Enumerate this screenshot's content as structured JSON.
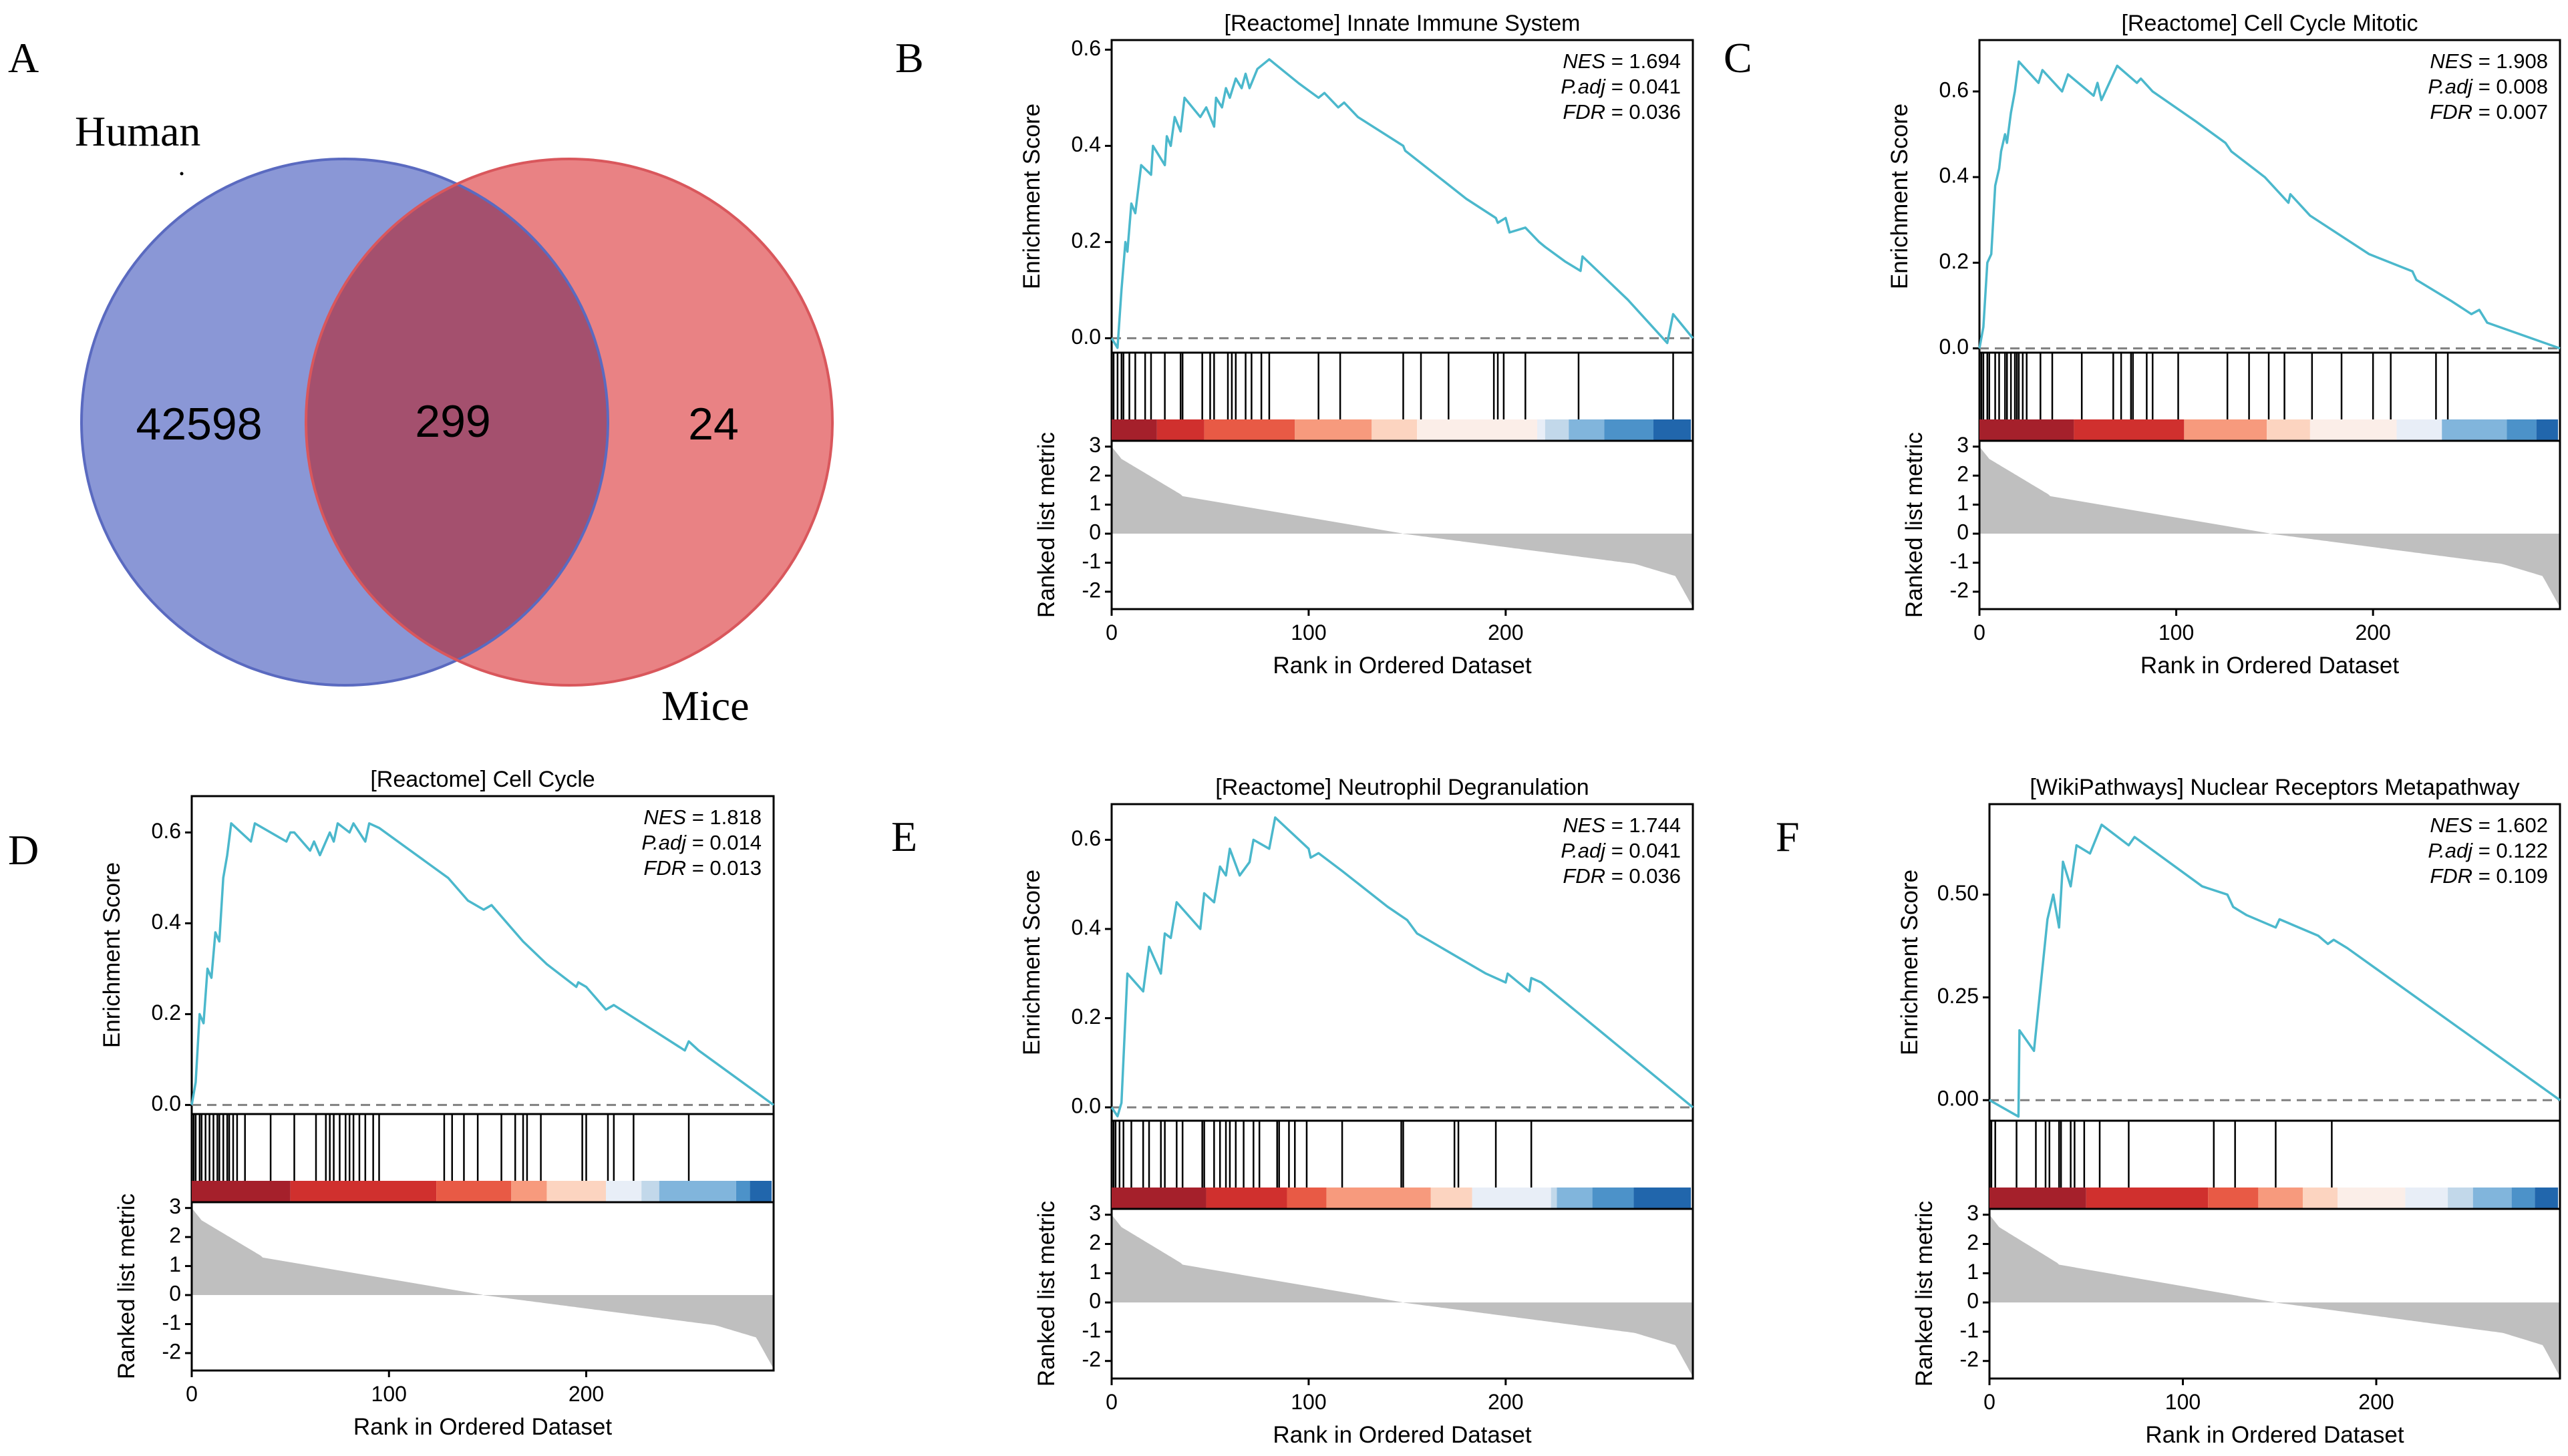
{
  "venn": {
    "panel_letter": "A",
    "labels": [
      "Human",
      "Mice"
    ],
    "only_a": "42598",
    "intersection": "299",
    "only_b": "24",
    "colors": {
      "a": "#8a97d6",
      "a_edge": "#5a6ac0",
      "b": "#e98284",
      "b_edge": "#d9575c",
      "overlap": "#a4506e"
    }
  },
  "colors": {
    "curve": "#4bb8cc",
    "hits": "#000000",
    "baseline": "#808080",
    "metric_fill": "#bfbfbf"
  },
  "heatmap_colors": [
    "#a5202b",
    "#d0302e",
    "#e85a45",
    "#f79a7d",
    "#fcd4c0",
    "#fbeee8",
    "#e8eef7",
    "#c2d8ea",
    "#81b5dc",
    "#4c92c9",
    "#2166ac"
  ],
  "chart_data": [
    {
      "panel": "B",
      "type": "line",
      "title": "[Reactome] Innate Immune System",
      "stats": [
        {
          "label": "NES",
          "value": "1.694"
        },
        {
          "label": "P.adj",
          "value": "0.041"
        },
        {
          "label": "FDR",
          "value": "0.036"
        }
      ],
      "ylabel": "Enrichment Score",
      "ylabel2": "Ranked list metric",
      "xlabel": "Rank in Ordered Dataset",
      "xlim": [
        0,
        295
      ],
      "ylim": [
        -0.03,
        0.62
      ],
      "yticks": [
        "0.0",
        "0.2",
        "0.4",
        "0.6"
      ],
      "ytick_values": [
        0,
        0.2,
        0.4,
        0.6
      ],
      "xticks": [
        "0",
        "100",
        "200"
      ],
      "xtick_values": [
        0,
        100,
        200
      ],
      "y2ticks": [
        "3",
        "2",
        "1",
        "0",
        "-1",
        "-2"
      ],
      "y2tick_values": [
        3,
        2,
        1,
        0,
        -1,
        -2
      ],
      "metric_range": [
        3.2,
        -2.6
      ],
      "heatmap_bounds": [
        0,
        23,
        47,
        93,
        132,
        155,
        216,
        220,
        232,
        250,
        275,
        294
      ],
      "running_es": [
        [
          0,
          0.0
        ],
        [
          3,
          -0.02
        ],
        [
          5,
          0.1
        ],
        [
          7,
          0.2
        ],
        [
          8,
          0.18
        ],
        [
          10,
          0.28
        ],
        [
          12,
          0.26
        ],
        [
          15,
          0.36
        ],
        [
          20,
          0.34
        ],
        [
          21,
          0.4
        ],
        [
          27,
          0.36
        ],
        [
          28,
          0.42
        ],
        [
          30,
          0.4
        ],
        [
          32,
          0.46
        ],
        [
          35,
          0.43
        ],
        [
          37,
          0.5
        ],
        [
          45,
          0.46
        ],
        [
          48,
          0.48
        ],
        [
          52,
          0.44
        ],
        [
          53,
          0.5
        ],
        [
          56,
          0.48
        ],
        [
          58,
          0.52
        ],
        [
          60,
          0.5
        ],
        [
          63,
          0.54
        ],
        [
          66,
          0.52
        ],
        [
          68,
          0.55
        ],
        [
          70,
          0.52
        ],
        [
          74,
          0.56
        ],
        [
          80,
          0.58
        ],
        [
          95,
          0.53
        ],
        [
          105,
          0.5
        ],
        [
          108,
          0.51
        ],
        [
          115,
          0.48
        ],
        [
          118,
          0.49
        ],
        [
          125,
          0.46
        ],
        [
          148,
          0.4
        ],
        [
          149,
          0.39
        ],
        [
          180,
          0.29
        ],
        [
          195,
          0.25
        ],
        [
          196,
          0.24
        ],
        [
          200,
          0.25
        ],
        [
          202,
          0.22
        ],
        [
          210,
          0.23
        ],
        [
          217,
          0.2
        ],
        [
          220,
          0.19
        ],
        [
          230,
          0.16
        ],
        [
          238,
          0.14
        ],
        [
          239,
          0.17
        ],
        [
          262,
          0.08
        ],
        [
          282,
          -0.01
        ],
        [
          285,
          0.05
        ],
        [
          295,
          0.0
        ]
      ],
      "hits": [
        1,
        3,
        5,
        6,
        9,
        12,
        17,
        20,
        27,
        35,
        36,
        46,
        50,
        52,
        59,
        61,
        63,
        68,
        71,
        76,
        80,
        105,
        116,
        148,
        157,
        171,
        194,
        196,
        199,
        210,
        237,
        285
      ]
    },
    {
      "panel": "C",
      "type": "line",
      "title": "[Reactome] Cell Cycle Mitotic",
      "stats": [
        {
          "label": "NES",
          "value": "1.908"
        },
        {
          "label": "P.adj",
          "value": "0.008"
        },
        {
          "label": "FDR",
          "value": "0.007"
        }
      ],
      "ylabel": "Enrichment Score",
      "ylabel2": "Ranked list metric",
      "xlabel": "Rank in Ordered Dataset",
      "xlim": [
        0,
        295
      ],
      "ylim": [
        -0.01,
        0.72
      ],
      "yticks": [
        "0.0",
        "0.2",
        "0.4",
        "0.6"
      ],
      "ytick_values": [
        0,
        0.2,
        0.4,
        0.6
      ],
      "xticks": [
        "0",
        "100",
        "200"
      ],
      "xtick_values": [
        0,
        100,
        200
      ],
      "y2ticks": [
        "3",
        "2",
        "1",
        "0",
        "-1",
        "-2"
      ],
      "y2tick_values": [
        3,
        2,
        1,
        0,
        -1,
        -2
      ],
      "metric_range": [
        3.2,
        -2.6
      ],
      "heatmap_bounds": [
        0,
        48,
        104,
        146,
        168,
        212,
        235,
        268,
        283,
        294
      ],
      "running_es": [
        [
          0,
          0.0
        ],
        [
          2,
          0.05
        ],
        [
          4,
          0.2
        ],
        [
          6,
          0.22
        ],
        [
          8,
          0.38
        ],
        [
          10,
          0.42
        ],
        [
          11,
          0.46
        ],
        [
          13,
          0.5
        ],
        [
          14,
          0.48
        ],
        [
          16,
          0.55
        ],
        [
          18,
          0.6
        ],
        [
          20,
          0.67
        ],
        [
          30,
          0.62
        ],
        [
          32,
          0.65
        ],
        [
          42,
          0.6
        ],
        [
          45,
          0.64
        ],
        [
          58,
          0.59
        ],
        [
          60,
          0.62
        ],
        [
          62,
          0.58
        ],
        [
          70,
          0.66
        ],
        [
          80,
          0.62
        ],
        [
          82,
          0.63
        ],
        [
          88,
          0.6
        ],
        [
          110,
          0.53
        ],
        [
          125,
          0.48
        ],
        [
          128,
          0.46
        ],
        [
          145,
          0.4
        ],
        [
          157,
          0.34
        ],
        [
          158,
          0.36
        ],
        [
          168,
          0.31
        ],
        [
          198,
          0.22
        ],
        [
          220,
          0.18
        ],
        [
          222,
          0.16
        ],
        [
          240,
          0.11
        ],
        [
          250,
          0.08
        ],
        [
          254,
          0.09
        ],
        [
          258,
          0.06
        ],
        [
          295,
          0.0
        ]
      ],
      "hits": [
        1,
        2,
        4,
        5,
        8,
        10,
        13,
        14,
        16,
        18,
        19,
        20,
        22,
        24,
        31,
        37,
        52,
        68,
        72,
        77,
        78,
        85,
        88,
        101,
        126,
        137,
        147,
        155,
        169,
        184,
        200,
        209,
        232,
        238
      ]
    },
    {
      "panel": "D",
      "type": "line",
      "title": "[Reactome] Cell Cycle",
      "stats": [
        {
          "label": "NES",
          "value": "1.818"
        },
        {
          "label": "P.adj",
          "value": "0.014"
        },
        {
          "label": "FDR",
          "value": "0.013"
        }
      ],
      "ylabel": "Enrichment Score",
      "ylabel2": "Ranked list metric",
      "xlabel": "Rank in Ordered Dataset",
      "xlim": [
        0,
        295
      ],
      "ylim": [
        -0.02,
        0.68
      ],
      "yticks": [
        "0.0",
        "0.2",
        "0.4",
        "0.6"
      ],
      "ytick_values": [
        0,
        0.2,
        0.4,
        0.6
      ],
      "xticks": [
        "0",
        "100",
        "200"
      ],
      "xtick_values": [
        0,
        100,
        200
      ],
      "y2ticks": [
        "3",
        "2",
        "1",
        "0",
        "-1",
        "-2"
      ],
      "y2tick_values": [
        3,
        2,
        1,
        0,
        -1,
        -2
      ],
      "metric_range": [
        3.2,
        -2.6
      ],
      "heatmap_bounds": [
        0,
        50,
        124,
        162,
        180,
        210,
        228,
        237,
        276,
        283,
        294
      ],
      "running_es": [
        [
          0,
          0.0
        ],
        [
          2,
          0.05
        ],
        [
          4,
          0.2
        ],
        [
          6,
          0.18
        ],
        [
          8,
          0.3
        ],
        [
          10,
          0.28
        ],
        [
          12,
          0.38
        ],
        [
          14,
          0.36
        ],
        [
          16,
          0.5
        ],
        [
          18,
          0.55
        ],
        [
          20,
          0.62
        ],
        [
          30,
          0.58
        ],
        [
          32,
          0.62
        ],
        [
          48,
          0.58
        ],
        [
          50,
          0.6
        ],
        [
          52,
          0.6
        ],
        [
          60,
          0.56
        ],
        [
          62,
          0.58
        ],
        [
          65,
          0.55
        ],
        [
          70,
          0.6
        ],
        [
          72,
          0.58
        ],
        [
          74,
          0.62
        ],
        [
          80,
          0.6
        ],
        [
          82,
          0.62
        ],
        [
          88,
          0.58
        ],
        [
          90,
          0.62
        ],
        [
          95,
          0.61
        ],
        [
          130,
          0.5
        ],
        [
          140,
          0.45
        ],
        [
          148,
          0.43
        ],
        [
          152,
          0.44
        ],
        [
          168,
          0.36
        ],
        [
          180,
          0.31
        ],
        [
          195,
          0.26
        ],
        [
          196,
          0.27
        ],
        [
          200,
          0.26
        ],
        [
          210,
          0.21
        ],
        [
          214,
          0.22
        ],
        [
          250,
          0.12
        ],
        [
          252,
          0.14
        ],
        [
          257,
          0.12
        ],
        [
          295,
          0.0
        ]
      ],
      "hits": [
        1,
        2,
        4,
        5,
        7,
        9,
        11,
        13,
        14,
        16,
        18,
        19,
        21,
        23,
        27,
        40,
        52,
        63,
        68,
        70,
        72,
        75,
        78,
        80,
        82,
        85,
        88,
        92,
        95,
        128,
        132,
        138,
        145,
        157,
        164,
        168,
        170,
        177,
        198,
        200,
        211,
        214,
        224,
        252
      ]
    },
    {
      "panel": "E",
      "type": "line",
      "title": "[Reactome] Neutrophil Degranulation",
      "stats": [
        {
          "label": "NES",
          "value": "1.744"
        },
        {
          "label": "P.adj",
          "value": "0.041"
        },
        {
          "label": "FDR",
          "value": "0.036"
        }
      ],
      "ylabel": "Enrichment Score",
      "ylabel2": "Ranked list metric",
      "xlabel": "Rank in Ordered Dataset",
      "xlim": [
        0,
        295
      ],
      "ylim": [
        -0.03,
        0.68
      ],
      "yticks": [
        "0.0",
        "0.2",
        "0.4",
        "0.6"
      ],
      "ytick_values": [
        0,
        0.2,
        0.4,
        0.6
      ],
      "xticks": [
        "0",
        "100",
        "200"
      ],
      "xtick_values": [
        0,
        100,
        200
      ],
      "y2ticks": [
        "3",
        "2",
        "1",
        "0",
        "-1",
        "-2"
      ],
      "y2tick_values": [
        3,
        2,
        1,
        0,
        -1,
        -2
      ],
      "metric_range": [
        3.2,
        -2.6
      ],
      "heatmap_bounds": [
        0,
        48,
        89,
        109,
        162,
        183,
        223,
        226,
        244,
        265,
        294
      ],
      "running_es": [
        [
          0,
          0.0
        ],
        [
          3,
          -0.02
        ],
        [
          5,
          0.01
        ],
        [
          8,
          0.3
        ],
        [
          16,
          0.26
        ],
        [
          19,
          0.36
        ],
        [
          25,
          0.3
        ],
        [
          27,
          0.39
        ],
        [
          30,
          0.38
        ],
        [
          33,
          0.46
        ],
        [
          45,
          0.4
        ],
        [
          47,
          0.48
        ],
        [
          52,
          0.46
        ],
        [
          55,
          0.54
        ],
        [
          58,
          0.52
        ],
        [
          60,
          0.58
        ],
        [
          65,
          0.52
        ],
        [
          70,
          0.55
        ],
        [
          72,
          0.6
        ],
        [
          80,
          0.58
        ],
        [
          83,
          0.65
        ],
        [
          100,
          0.58
        ],
        [
          101,
          0.56
        ],
        [
          105,
          0.57
        ],
        [
          117,
          0.53
        ],
        [
          140,
          0.45
        ],
        [
          150,
          0.42
        ],
        [
          155,
          0.39
        ],
        [
          190,
          0.3
        ],
        [
          200,
          0.28
        ],
        [
          201,
          0.3
        ],
        [
          212,
          0.26
        ],
        [
          213,
          0.29
        ],
        [
          218,
          0.28
        ],
        [
          295,
          0.0
        ]
      ],
      "hits": [
        1,
        2,
        4,
        6,
        10,
        16,
        19,
        25,
        27,
        33,
        36,
        46,
        47,
        52,
        55,
        58,
        60,
        63,
        67,
        72,
        75,
        84,
        85,
        90,
        93,
        99,
        117,
        147,
        148,
        174,
        176,
        195,
        213
      ]
    },
    {
      "panel": "F",
      "type": "line",
      "title": "[WikiPathways] Nuclear Receptors Metapathway",
      "stats": [
        {
          "label": "NES",
          "value": "1.602"
        },
        {
          "label": "P.adj",
          "value": "0.122"
        },
        {
          "label": "FDR",
          "value": "0.109"
        }
      ],
      "ylabel": "Enrichment Score",
      "ylabel2": "Ranked list metric",
      "xlabel": "Rank in Ordered Dataset",
      "xlim": [
        0,
        295
      ],
      "ylim": [
        -0.05,
        0.72
      ],
      "yticks": [
        "0.00",
        "0.25",
        "0.50"
      ],
      "ytick_values": [
        0,
        0.25,
        0.5
      ],
      "xticks": [
        "0",
        "100",
        "200"
      ],
      "xtick_values": [
        0,
        100,
        200
      ],
      "y2ticks": [
        "3",
        "2",
        "1",
        "0",
        "-1",
        "-2"
      ],
      "y2tick_values": [
        3,
        2,
        1,
        0,
        -1,
        -2
      ],
      "metric_range": [
        3.2,
        -2.6
      ],
      "heatmap_bounds": [
        0,
        50,
        113,
        139,
        162,
        180,
        215,
        237,
        250,
        270,
        282,
        294
      ],
      "running_es": [
        [
          0,
          0.0
        ],
        [
          15,
          -0.04
        ],
        [
          15.5,
          0.17
        ],
        [
          23,
          0.12
        ],
        [
          30,
          0.44
        ],
        [
          33,
          0.5
        ],
        [
          36,
          0.42
        ],
        [
          38,
          0.58
        ],
        [
          42,
          0.52
        ],
        [
          45,
          0.62
        ],
        [
          52,
          0.6
        ],
        [
          58,
          0.67
        ],
        [
          72,
          0.62
        ],
        [
          75,
          0.64
        ],
        [
          110,
          0.52
        ],
        [
          123,
          0.5
        ],
        [
          126,
          0.47
        ],
        [
          133,
          0.45
        ],
        [
          148,
          0.42
        ],
        [
          150,
          0.44
        ],
        [
          170,
          0.4
        ],
        [
          175,
          0.38
        ],
        [
          178,
          0.39
        ],
        [
          185,
          0.37
        ],
        [
          295,
          0.0
        ]
      ],
      "hits": [
        1,
        3,
        14,
        24,
        29,
        31,
        36,
        37,
        42,
        44,
        49,
        57,
        72,
        116,
        127,
        148,
        177
      ]
    }
  ]
}
